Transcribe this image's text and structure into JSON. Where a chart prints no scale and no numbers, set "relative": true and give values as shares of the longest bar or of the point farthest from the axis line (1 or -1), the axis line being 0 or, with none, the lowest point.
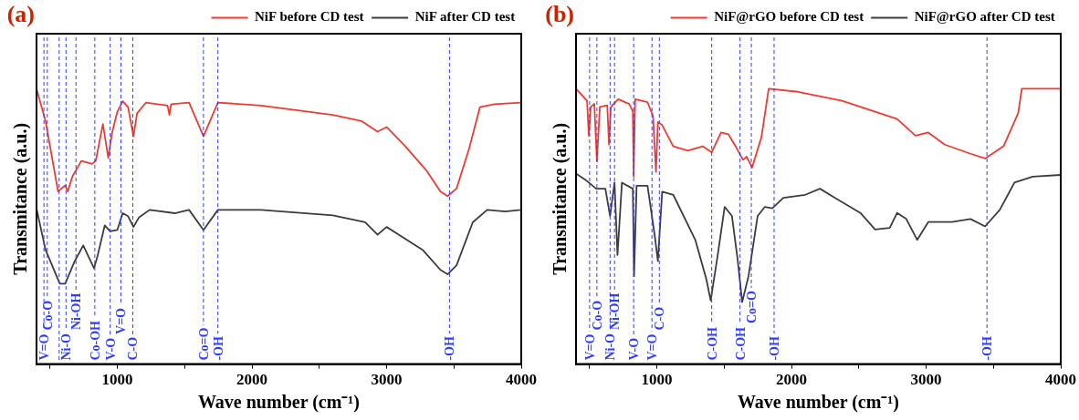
{
  "chart_data": [
    {
      "type": "line",
      "title": "(a)",
      "xlabel": "Wave number (cm⁻¹)",
      "ylabel": "Transmitance (a.u.)",
      "relative": true,
      "legend": "top",
      "grid": false,
      "marker": "none",
      "line_style": "solid",
      "xlim": [
        400,
        4000
      ],
      "xticks": [
        {
          "value": 500,
          "label": null
        },
        1000,
        {
          "value": 1500,
          "label": null
        },
        2000,
        {
          "value": 2500,
          "label": null
        },
        3000,
        {
          "value": 3500,
          "label": null
        },
        4000
      ],
      "series": [
        {
          "name": "NiF before CD test",
          "color": "#ee3b30",
          "x": [
            400,
            467,
            560,
            613,
            632,
            667,
            733,
            813,
            840,
            893,
            933,
            960,
            1000,
            1040,
            1080,
            1120,
            1147,
            1213,
            1373,
            1387,
            1400,
            1533,
            1640,
            1747,
            2067,
            2600,
            2813,
            2933,
            3000,
            3133,
            3293,
            3400,
            3453,
            3520,
            3613,
            3693,
            3800,
            4000
          ],
          "values": [
            1.0,
            0.883,
            0.627,
            0.649,
            0.627,
            0.682,
            0.738,
            0.727,
            0.738,
            0.872,
            0.749,
            0.838,
            0.916,
            0.955,
            0.933,
            0.827,
            0.911,
            0.95,
            0.939,
            0.905,
            0.944,
            0.95,
            0.827,
            0.95,
            0.939,
            0.905,
            0.883,
            0.844,
            0.861,
            0.794,
            0.705,
            0.627,
            0.61,
            0.638,
            0.783,
            0.933,
            0.944,
            0.95
          ]
        },
        {
          "name": "NiF after CD test",
          "color": "#3c3c3c",
          "x": [
            400,
            467,
            573,
            613,
            680,
            747,
            827,
            853,
            907,
            947,
            1000,
            1040,
            1080,
            1120,
            1160,
            1240,
            1427,
            1533,
            1640,
            1747,
            2067,
            2600,
            2840,
            2933,
            3000,
            3267,
            3400,
            3453,
            3520,
            3640,
            3747,
            3880,
            4000
          ],
          "values": [
            0.565,
            0.415,
            0.292,
            0.292,
            0.37,
            0.431,
            0.348,
            0.392,
            0.504,
            0.482,
            0.487,
            0.548,
            0.537,
            0.498,
            0.532,
            0.56,
            0.548,
            0.56,
            0.487,
            0.56,
            0.56,
            0.54,
            0.515,
            0.47,
            0.498,
            0.415,
            0.342,
            0.326,
            0.359,
            0.515,
            0.56,
            0.554,
            0.56
          ]
        }
      ],
      "ref_lines": [
        {
          "axis": "x",
          "value": 455,
          "label": "V=O",
          "color": "#2e3cff",
          "line_style": "dashed"
        },
        {
          "axis": "x",
          "value": 480,
          "label": "Co-O",
          "color": "#2e3cff",
          "line_style": "dashed"
        },
        {
          "axis": "x",
          "value": 568,
          "label": null,
          "color": "#2e3cff",
          "line_style": "dashed"
        },
        {
          "axis": "x",
          "value": 619,
          "label": "Ni-O",
          "color": "#2e3cff",
          "line_style": "dashed"
        },
        {
          "axis": "x",
          "value": 693,
          "label": "Ni-OH",
          "color": "#2e3cff",
          "line_style": "dashed"
        },
        {
          "axis": "x",
          "value": 833,
          "label": "Co-OH",
          "color": "#2e3cff",
          "line_style": "dashed"
        },
        {
          "axis": "x",
          "value": 947,
          "label": "V-O",
          "color": "#2e3cff",
          "line_style": "dashed"
        },
        {
          "axis": "x",
          "value": 1027,
          "label": "V=O",
          "color": "#2e3cff",
          "line_style": "dashed"
        },
        {
          "axis": "x",
          "value": 1115,
          "label": "C-O",
          "color": "#2e3cff",
          "line_style": "dashed"
        },
        {
          "axis": "x",
          "value": 1640,
          "label": "Co=O",
          "color": "#2e3cff",
          "line_style": "dashed"
        },
        {
          "axis": "x",
          "value": 1747,
          "label": "-OH",
          "color": "#2e3cff",
          "line_style": "dashed"
        },
        {
          "axis": "x",
          "value": 3467,
          "label": "-OH",
          "color": "#2e3cff",
          "line_style": "dashed"
        }
      ]
    },
    {
      "type": "line",
      "title": "(b)",
      "xlabel": "Wave number (cm⁻¹)",
      "ylabel": "Transmitance (a.u.)",
      "relative": true,
      "legend": "top",
      "grid": false,
      "marker": "none",
      "line_style": "solid",
      "xlim": [
        400,
        4000
      ],
      "xticks": [
        {
          "value": 500,
          "label": null
        },
        1000,
        {
          "value": 1500,
          "label": null
        },
        2000,
        {
          "value": 2500,
          "label": null
        },
        3000,
        {
          "value": 3500,
          "label": null
        },
        4000
      ],
      "series": [
        {
          "name": "NiF@rGO before CD test",
          "color": "#ee3b30",
          "x": [
            400,
            482,
            495,
            509,
            536,
            555,
            577,
            632,
            645,
            659,
            713,
            795,
            822,
            828,
            839,
            931,
            972,
            994,
            1008,
            1040,
            1122,
            1231,
            1340,
            1408,
            1477,
            1531,
            1585,
            1640,
            1667,
            1708,
            1777,
            1831,
            2049,
            2376,
            2785,
            2921,
            3016,
            3139,
            3330,
            3438,
            3575,
            3684,
            3711,
            4000
          ],
          "values": [
            1.0,
            0.956,
            0.83,
            0.934,
            0.945,
            0.736,
            0.934,
            0.94,
            0.797,
            0.934,
            0.962,
            0.945,
            0.918,
            0.681,
            0.962,
            0.951,
            0.901,
            0.698,
            0.879,
            0.868,
            0.791,
            0.775,
            0.791,
            0.769,
            0.841,
            0.835,
            0.791,
            0.742,
            0.753,
            0.714,
            0.824,
            1.0,
            0.989,
            0.956,
            0.89,
            0.83,
            0.841,
            0.797,
            0.764,
            0.747,
            0.791,
            0.912,
            1.0,
            1.0
          ]
        },
        {
          "name": "NiF@rGO after CD test",
          "color": "#3c3c3c",
          "x": [
            400,
            468,
            550,
            618,
            653,
            686,
            708,
            741,
            822,
            831,
            850,
            931,
            986,
            1008,
            1040,
            1122,
            1286,
            1368,
            1400,
            1449,
            1504,
            1558,
            1599,
            1634,
            1681,
            1749,
            1803,
            1858,
            1940,
            2103,
            2212,
            2321,
            2512,
            2621,
            2730,
            2785,
            2853,
            2934,
            3016,
            3193,
            3330,
            3438,
            3547,
            3656,
            3792,
            4000
          ],
          "values": [
            0.692,
            0.67,
            0.637,
            0.637,
            0.538,
            0.659,
            0.396,
            0.659,
            0.637,
            0.319,
            0.648,
            0.648,
            0.462,
            0.374,
            0.626,
            0.615,
            0.451,
            0.308,
            0.231,
            0.385,
            0.571,
            0.538,
            0.385,
            0.225,
            0.319,
            0.538,
            0.571,
            0.566,
            0.604,
            0.615,
            0.637,
            0.604,
            0.549,
            0.489,
            0.495,
            0.549,
            0.527,
            0.451,
            0.516,
            0.516,
            0.527,
            0.5,
            0.56,
            0.659,
            0.681,
            0.687
          ]
        }
      ],
      "ref_lines": [
        {
          "axis": "x",
          "value": 501,
          "label": "V=O",
          "color": "#2e3cff",
          "line_style": "dashed"
        },
        {
          "axis": "x",
          "value": 555,
          "label": "Co-O",
          "color": "#2e3cff",
          "line_style": "dashed"
        },
        {
          "axis": "x",
          "value": 653,
          "label": "Ni-O",
          "color": "#2e3cff",
          "line_style": "dashed"
        },
        {
          "axis": "x",
          "value": 686,
          "label": "Ni-OH",
          "color": "#2e3cff",
          "line_style": "dashed"
        },
        {
          "axis": "x",
          "value": 828,
          "label": "V-O",
          "color": "#2e3cff",
          "line_style": "dashed"
        },
        {
          "axis": "x",
          "value": 964,
          "label": "V=O",
          "color": "#2e3cff",
          "line_style": "dashed"
        },
        {
          "axis": "x",
          "value": 1019,
          "label": "C-O",
          "color": "#2e3cff",
          "line_style": "dashed"
        },
        {
          "axis": "x",
          "value": 1408,
          "label": "C-OH",
          "color": "#2e3cff",
          "line_style": "dashed"
        },
        {
          "axis": "x",
          "value": 1618,
          "label": "C-OH",
          "color": "#2e3cff",
          "line_style": "dashed"
        },
        {
          "axis": "x",
          "value": 1702,
          "label": "Co=O",
          "color": "#2e3cff",
          "line_style": "dashed"
        },
        {
          "axis": "x",
          "value": 1871,
          "label": "-OH",
          "color": "#2e3cff",
          "line_style": "dashed"
        },
        {
          "axis": "x",
          "value": 3452,
          "label": "-OH",
          "color": "#2e3cff",
          "line_style": "dashed"
        }
      ]
    }
  ]
}
